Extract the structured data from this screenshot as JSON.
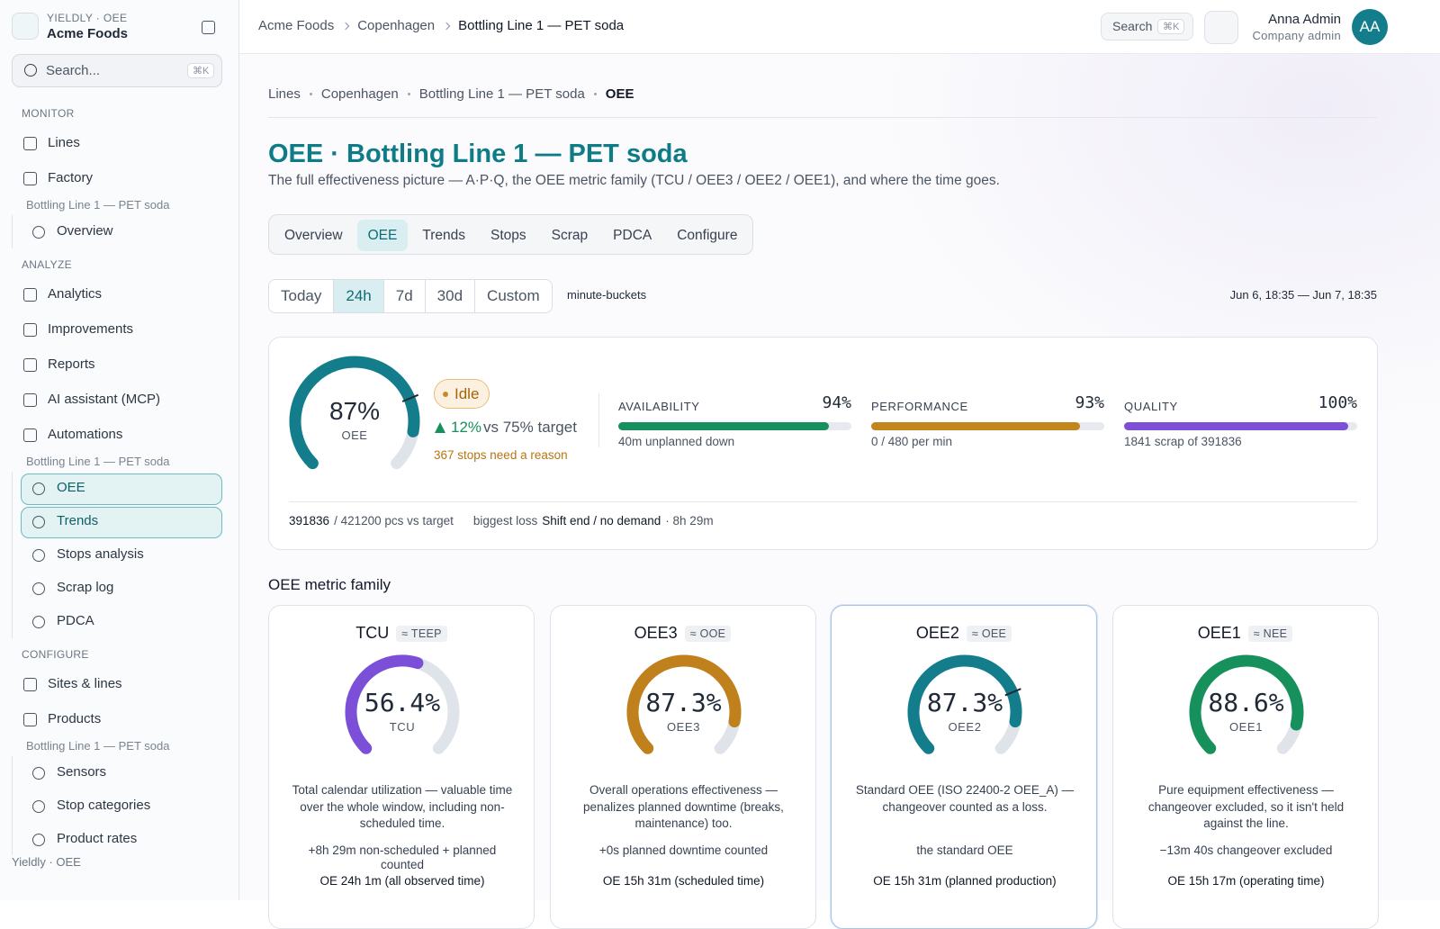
{
  "sidebar": {
    "brand_top": "YIELDLY · OEE",
    "brand": "Acme Foods",
    "search": "Search...",
    "search_kbd": "⌘K",
    "groups": [
      {
        "title": "MONITOR",
        "items": [
          "Lines",
          "Factory"
        ],
        "context": "Bottling Line 1 — PET soda",
        "sub": [
          {
            "label": "Overview"
          }
        ]
      },
      {
        "title": "ANALYZE",
        "items": [
          "Analytics",
          "Improvements",
          "Reports",
          "AI assistant (MCP)",
          "Automations"
        ],
        "context": "Bottling Line 1 — PET soda",
        "sub": [
          {
            "label": "OEE",
            "active": true
          },
          {
            "label": "Trends",
            "active": true
          },
          {
            "label": "Stops analysis"
          },
          {
            "label": "Scrap log"
          },
          {
            "label": "PDCA"
          }
        ]
      },
      {
        "title": "CONFIGURE",
        "items": [
          "Sites & lines",
          "Products"
        ],
        "context": "Bottling Line 1 — PET soda",
        "sub": [
          {
            "label": "Sensors"
          },
          {
            "label": "Stop categories"
          },
          {
            "label": "Product rates"
          }
        ]
      }
    ],
    "footer": "Yieldly · OEE"
  },
  "topbar": {
    "breadcrumbs": [
      "Acme Foods",
      "Copenhagen",
      "Bottling Line 1 — PET soda"
    ],
    "search": "Search",
    "search_kbd": "⌘K",
    "user": "Anna Admin",
    "role": "Company admin",
    "initials": "AA"
  },
  "page": {
    "breadcrumbs": [
      "Lines",
      "Copenhagen",
      "Bottling Line 1 — PET soda",
      "OEE"
    ],
    "title": "OEE · Bottling Line 1 — PET soda",
    "subtitle": "The full effectiveness picture — A·P·Q, the OEE metric family (TCU / OEE3 / OEE2 / OEE1), and where the time goes.",
    "tabs": [
      "Overview",
      "OEE",
      "Trends",
      "Stops",
      "Scrap",
      "PDCA",
      "Configure"
    ],
    "active_tab": "OEE",
    "ranges": [
      "Today",
      "24h",
      "7d",
      "30d",
      "Custom"
    ],
    "active_range": "24h",
    "bucket": "minute-buckets",
    "window": "Jun 6, 18:35 — Jun 7, 18:35"
  },
  "gauge_range": [
    0,
    100
  ],
  "summary": {
    "oee": {
      "value": 87,
      "label": "87%",
      "caption": "OEE",
      "color": "#137d8c"
    },
    "target": 75,
    "status": "Idle",
    "delta": {
      "value": 12,
      "label": "12%"
    },
    "target_text": "vs 75% target",
    "stops_note": "367 stops need a reason",
    "metrics": [
      {
        "name": "AVAILABILITY",
        "value": 94,
        "label": "94%",
        "note": "40m unplanned down",
        "color": "#17915c"
      },
      {
        "name": "PERFORMANCE",
        "value": 93,
        "label": "93%",
        "note": "0 / 480 per min",
        "color": "#c3861c"
      },
      {
        "name": "QUALITY",
        "value": 100,
        "label": "100%",
        "note": "1841 scrap of 391836",
        "color": "#7c4fd6"
      }
    ],
    "pcs": "391836",
    "pcs_text": "/ 421200 pcs vs target",
    "loss_label": "biggest loss",
    "loss": "Shift end / no demand",
    "loss_time": "· 8h 29m"
  },
  "family": {
    "title": "OEE metric family",
    "cards": [
      {
        "name": "TCU",
        "alias": "≈ TEEP",
        "value": 56.4,
        "label": "56.4%",
        "color": "#7b4fd8",
        "desc": "Total calendar utilization — valuable time over the whole window, including non-scheduled time.",
        "note": "+8h 29m non-scheduled + planned counted",
        "basis": "OE 24h 1m (all observed time)"
      },
      {
        "name": "OEE3",
        "alias": "≈ OOE",
        "value": 87.3,
        "label": "87.3%",
        "color": "#c0801c",
        "desc": "Overall operations effectiveness — penalizes planned downtime (breaks, maintenance) too.",
        "note": "+0s planned downtime counted",
        "basis": "OE 15h 31m (scheduled time)"
      },
      {
        "name": "OEE2",
        "alias": "≈ OEE",
        "value": 87.3,
        "label": "87.3%",
        "color": "#137d8c",
        "target": 75,
        "highlight": true,
        "desc": "Standard OEE (ISO 22400-2 OEE_A) — changeover counted as a loss.",
        "note": "the standard OEE",
        "basis": "OE 15h 31m (planned production)"
      },
      {
        "name": "OEE1",
        "alias": "≈ NEE",
        "value": 88.6,
        "label": "88.6%",
        "color": "#17915c",
        "desc": "Pure equipment effectiveness — changeover excluded, so it isn't held against the line.",
        "note": "−13m 40s changeover excluded",
        "basis": "OE 15h 17m (operating time)"
      }
    ]
  }
}
